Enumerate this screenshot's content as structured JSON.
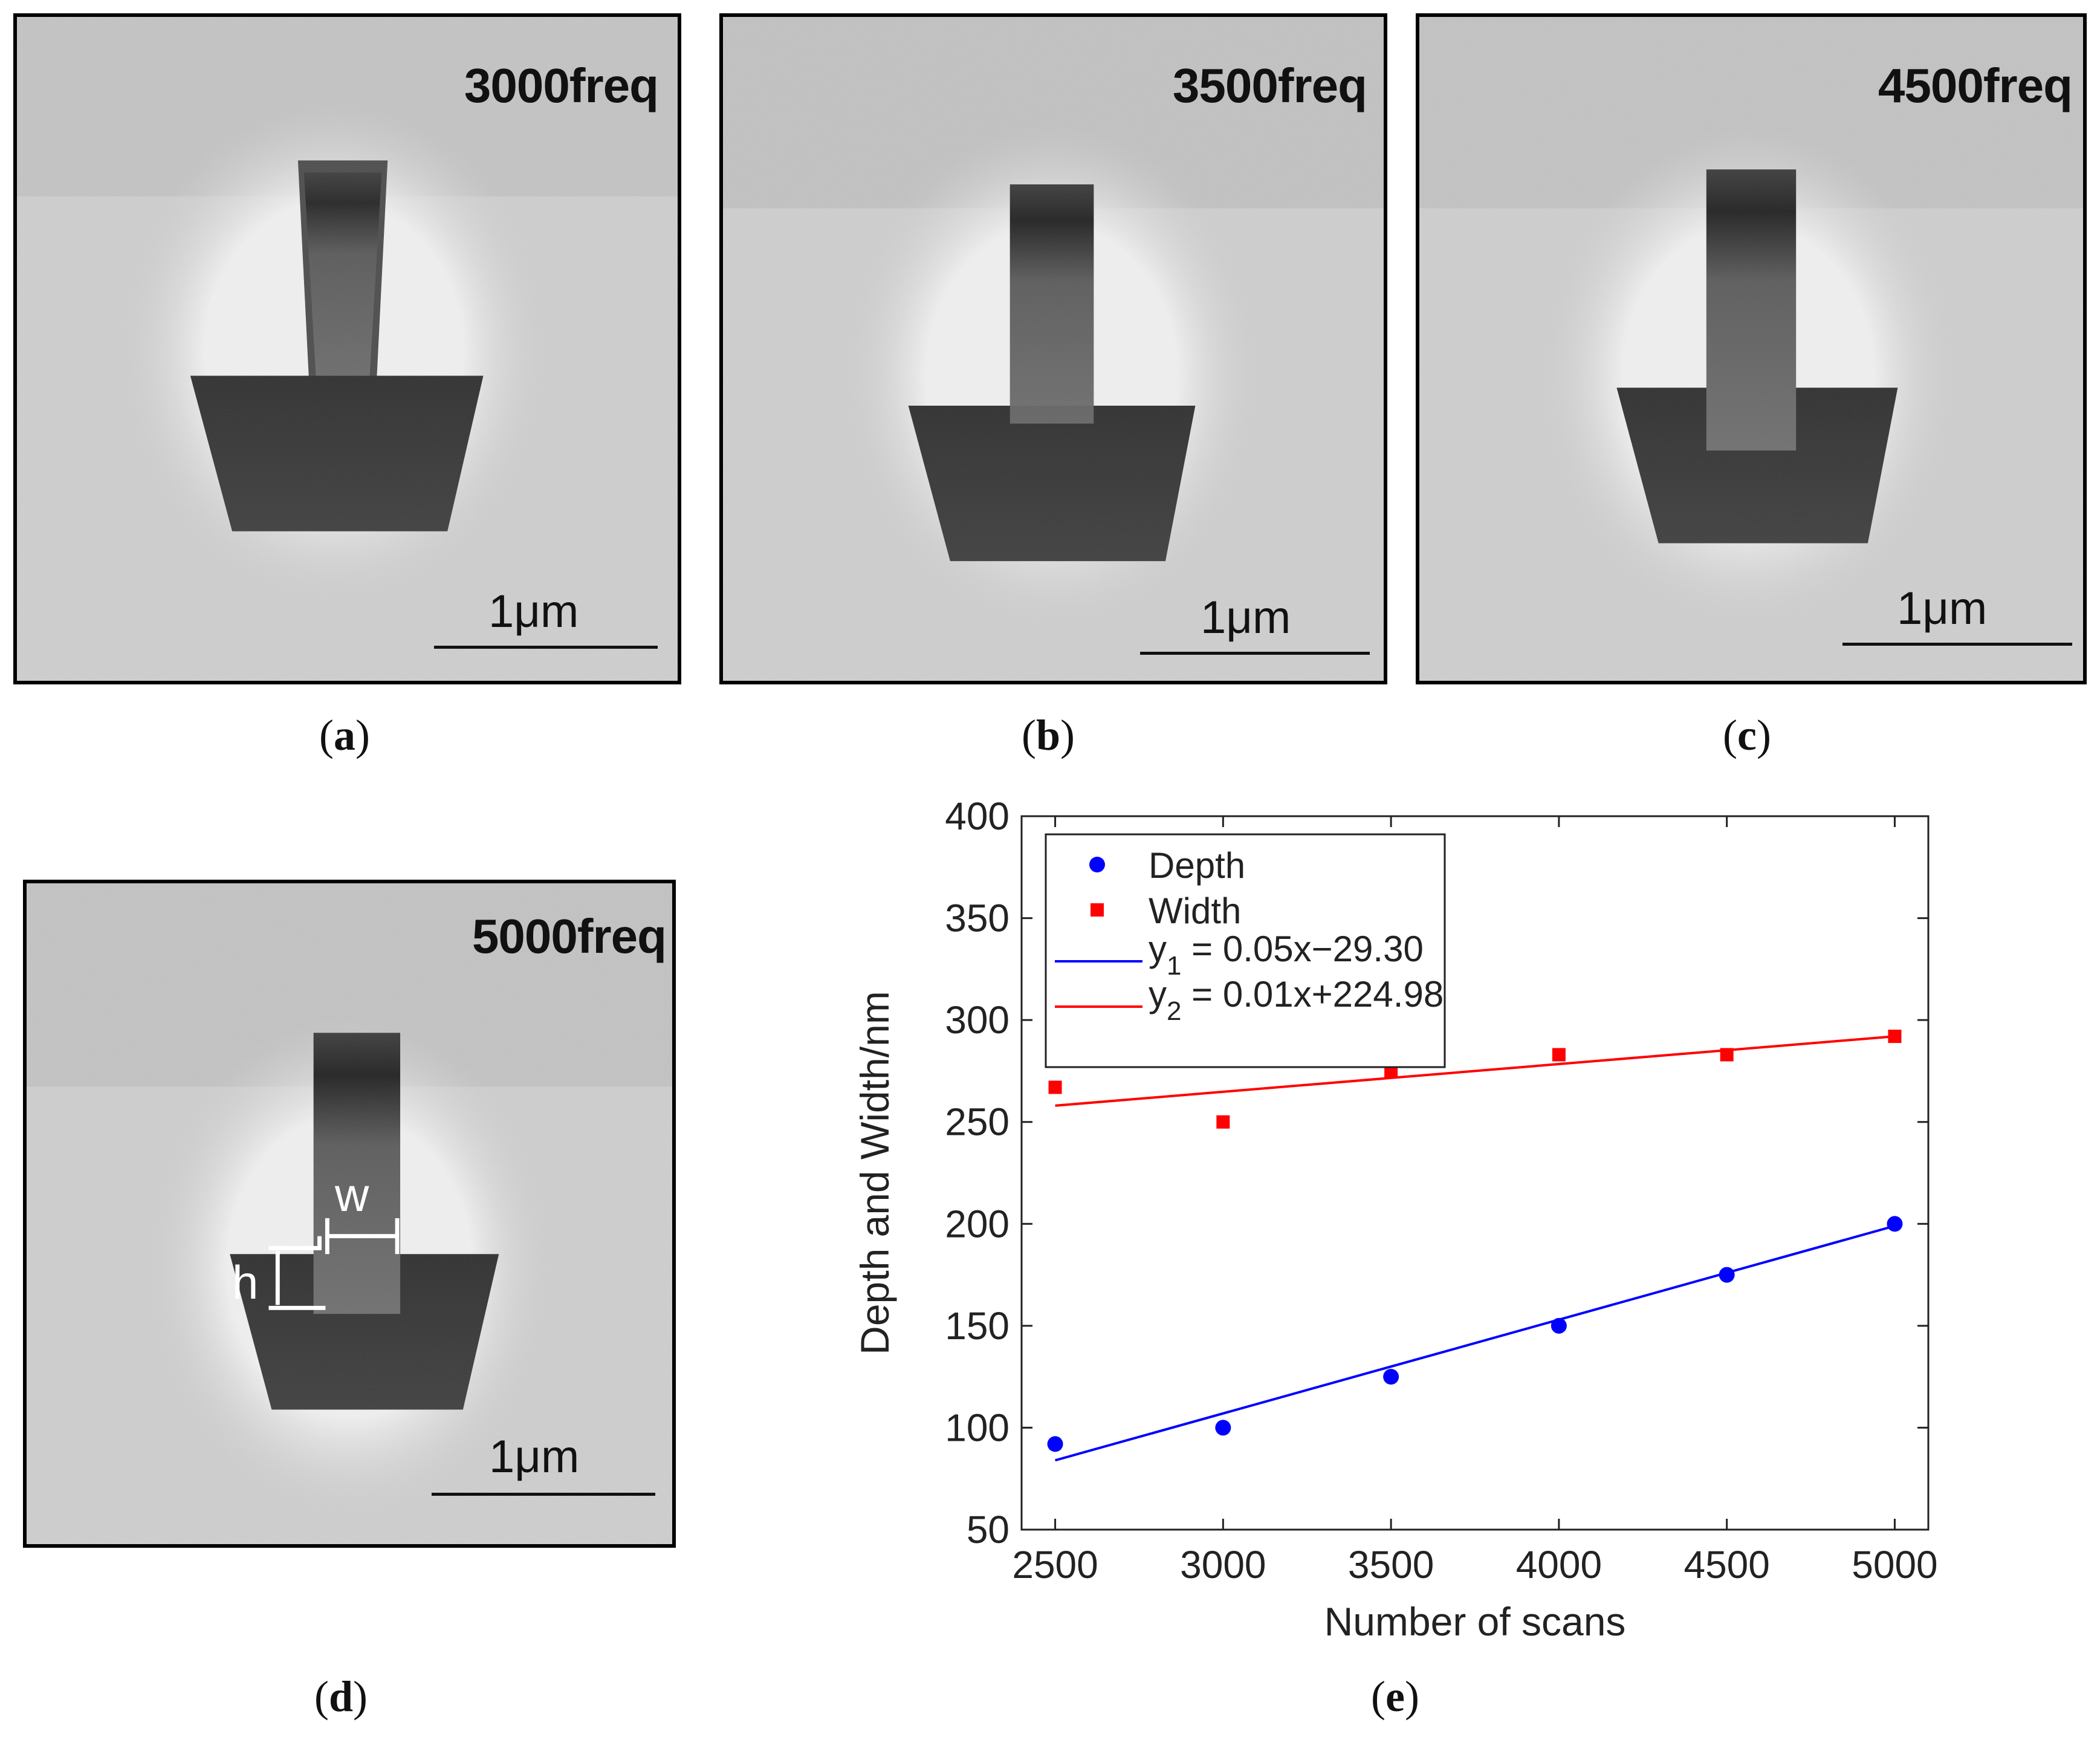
{
  "panels": [
    {
      "id": "a",
      "freq_label": "3000freq",
      "scale_label": "1μm",
      "caption": "a"
    },
    {
      "id": "b",
      "freq_label": "3500freq",
      "scale_label": "1μm",
      "caption": "b"
    },
    {
      "id": "c",
      "freq_label": "4500freq",
      "scale_label": "1μm",
      "caption": "c"
    },
    {
      "id": "d",
      "freq_label": "5000freq",
      "scale_label": "1μm",
      "caption": "d",
      "annotations": {
        "w": "w",
        "h": "h"
      }
    }
  ],
  "chart_caption": "e",
  "chart_data": {
    "type": "scatter",
    "xlabel": "Number of scans",
    "ylabel": "Depth and Width/nm",
    "xlim": [
      2400,
      5100
    ],
    "ylim": [
      50,
      400
    ],
    "xticks": [
      2500,
      3000,
      3500,
      4000,
      4500,
      5000
    ],
    "yticks": [
      50,
      100,
      150,
      200,
      250,
      300,
      350,
      400
    ],
    "legend_position": "top-left",
    "series": [
      {
        "name": "Depth",
        "marker": "circle",
        "color": "#0000ff",
        "x": [
          2500,
          3000,
          3500,
          4000,
          4500,
          5000
        ],
        "y": [
          92,
          100,
          125,
          150,
          175,
          200
        ]
      },
      {
        "name": "Width",
        "marker": "square",
        "color": "#ff0000",
        "x": [
          2500,
          3000,
          3500,
          4000,
          4500,
          5000
        ],
        "y": [
          267,
          250,
          275,
          283,
          283,
          292
        ]
      }
    ],
    "fits": [
      {
        "name_prefix": "y",
        "sub": "1",
        "equation": " = 0.05x−29.30",
        "color": "#0000ff",
        "x": [
          2500,
          5000
        ],
        "y": [
          84,
          199
        ]
      },
      {
        "name_prefix": "y",
        "sub": "2",
        "equation": " = 0.01x+224.98",
        "color": "#ff0000",
        "x": [
          2500,
          5000
        ],
        "y": [
          258,
          292
        ]
      }
    ]
  }
}
